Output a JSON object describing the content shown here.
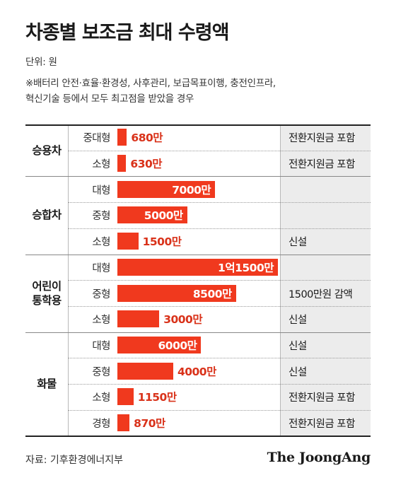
{
  "title": "차종별 보조금 최대 수령액",
  "unit_note": "단위: 원",
  "footnote_line1": "※배터리 안전·효율·환경성, 사후관리, 보급목표이행, 충전인프라,",
  "footnote_line2": "혁신기술 등에서 모두 최고점을 받았을 경우",
  "source": "자료: 기후환경에너지부",
  "brand": "The JoongAng",
  "colors": {
    "bar": "#f0391e",
    "value_text": "#d9321a",
    "note_bg": "#ececec"
  },
  "chart_data": {
    "type": "bar",
    "orientation": "horizontal",
    "unit": "원",
    "grid": false,
    "xlim": [
      0,
      11500
    ],
    "groups": [
      {
        "name": "승용차",
        "rows": [
          {
            "label": "중대형",
            "value": 680,
            "value_label": "680만",
            "note": "전환지원금 포함"
          },
          {
            "label": "소형",
            "value": 630,
            "value_label": "630만",
            "note": "전환지원금 포함"
          }
        ]
      },
      {
        "name": "승합차",
        "rows": [
          {
            "label": "대형",
            "value": 7000,
            "value_label": "7000만",
            "note": ""
          },
          {
            "label": "중형",
            "value": 5000,
            "value_label": "5000만",
            "note": ""
          },
          {
            "label": "소형",
            "value": 1500,
            "value_label": "1500만",
            "note": "신설"
          }
        ]
      },
      {
        "name": "어린이\n통학용",
        "rows": [
          {
            "label": "대형",
            "value": 11500,
            "value_label": "1억1500만",
            "note": ""
          },
          {
            "label": "중형",
            "value": 8500,
            "value_label": "8500만",
            "note": "1500만원 감액"
          },
          {
            "label": "소형",
            "value": 3000,
            "value_label": "3000만",
            "note": "신설"
          }
        ]
      },
      {
        "name": "화물",
        "rows": [
          {
            "label": "대형",
            "value": 6000,
            "value_label": "6000만",
            "note": "신설"
          },
          {
            "label": "중형",
            "value": 4000,
            "value_label": "4000만",
            "note": "신설"
          },
          {
            "label": "소형",
            "value": 1150,
            "value_label": "1150만",
            "note": "전환지원금 포함"
          },
          {
            "label": "경형",
            "value": 870,
            "value_label": "870만",
            "note": "전환지원금 포함"
          }
        ]
      }
    ]
  }
}
